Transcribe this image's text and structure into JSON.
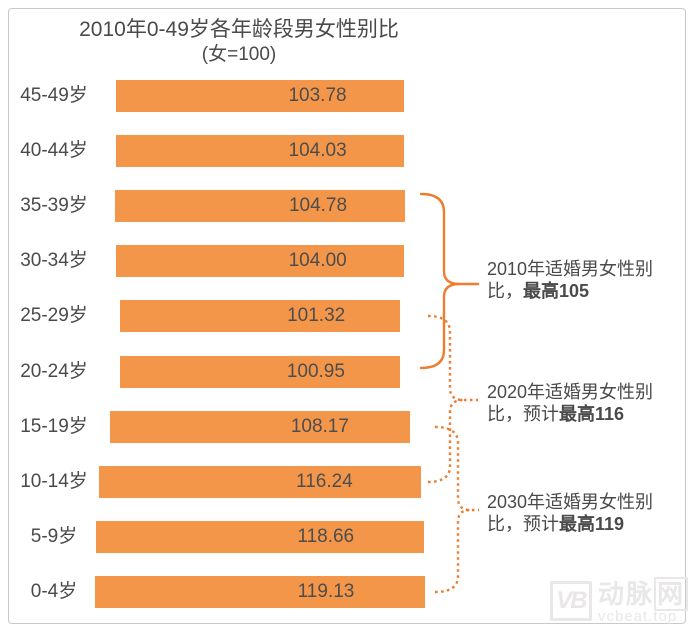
{
  "title": {
    "line1": "2010年0-49岁各年龄段男女性别比",
    "line2": "(女=100)"
  },
  "chart_data": {
    "type": "bar",
    "orientation": "horizontal",
    "title": "2010年0-49岁各年龄段男女性别比",
    "subtitle": "(女=100)",
    "categories": [
      "45-49岁",
      "40-44岁",
      "35-39岁",
      "30-34岁",
      "25-29岁",
      "20-24岁",
      "15-19岁",
      "10-14岁",
      "5-9岁",
      "0-4岁"
    ],
    "values": [
      103.78,
      104.03,
      104.78,
      104.0,
      101.32,
      100.95,
      108.17,
      116.24,
      118.66,
      119.13
    ],
    "value_labels": [
      "103.78",
      "104.03",
      "104.78",
      "104.00",
      "101.32",
      "100.95",
      "108.17",
      "116.24",
      "118.66",
      "119.13"
    ],
    "baseline": 0,
    "grid": false,
    "legend": false,
    "bar_color": "#f4964a",
    "label_color": "#4d4d4d"
  },
  "annotations": [
    {
      "normal": "2010年适婚男女性别比，",
      "bold": "最高105",
      "brace_style": "solid"
    },
    {
      "normal": "2020年适婚男女性别比，预计",
      "bold": "最高116",
      "brace_style": "dotted"
    },
    {
      "normal": "2030年适婚男女性别比，预计",
      "bold": "最高119",
      "brace_style": "dotted"
    }
  ],
  "colors": {
    "brace": "#ed7d31",
    "text": "#4a4a4a",
    "frame": "#c9c9c9",
    "watermark": "#e9e7e7"
  },
  "watermark": {
    "logo": "VB",
    "brand_prefix": "动脉",
    "brand_boxed": "网",
    "site": "vcbeat.top"
  }
}
